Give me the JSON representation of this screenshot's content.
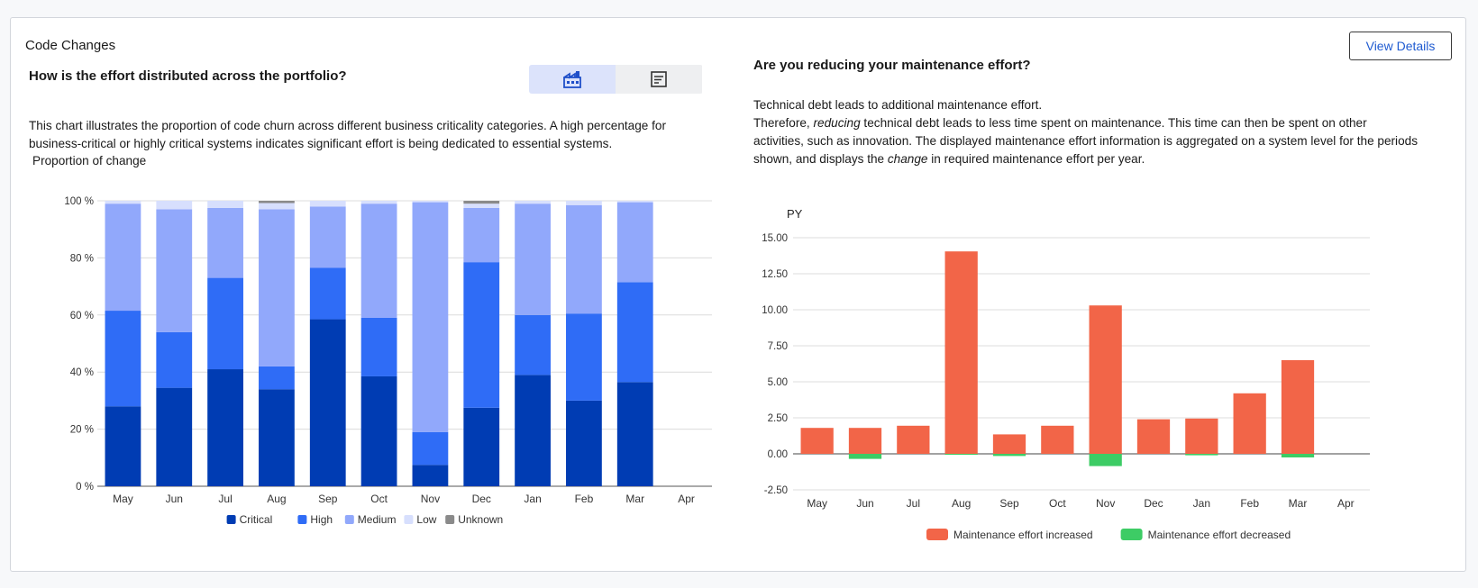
{
  "card": {
    "title": "Code Changes",
    "view_details_label": "View Details"
  },
  "left": {
    "title": "How is the effort distributed across the portfolio?",
    "toggle": [
      {
        "icon": "factory-icon",
        "active": true
      },
      {
        "icon": "report-icon",
        "active": false
      }
    ],
    "description": "This chart illustrates the proportion of code churn across different business criticality categories. A high percentage for business-critical or highly critical systems indicates significant effort is being dedicated to essential systems.",
    "y_axis_title": "Proportion of change"
  },
  "right": {
    "title": "Are you reducing your maintenance effort?",
    "desc_line1": "Technical debt leads to additional maintenance effort.",
    "desc_p2_a": "Therefore, ",
    "desc_p2_em1": "reducing",
    "desc_p2_b": " technical debt leads to less time spent on maintenance. This time can then be spent on other activities, such as innovation. The displayed maintenance effort information is aggregated on a system level for the periods shown, and displays the ",
    "desc_p2_em2": "change",
    "desc_p2_c": " in required maintenance effort per year."
  },
  "chart_data": [
    {
      "type": "bar",
      "stacked": true,
      "categories": [
        "May",
        "Jun",
        "Jul",
        "Aug",
        "Sep",
        "Oct",
        "Nov",
        "Dec",
        "Jan",
        "Feb",
        "Mar",
        "Apr"
      ],
      "series": [
        {
          "name": "Critical",
          "color": "#003cb3",
          "values": [
            28,
            34.5,
            41,
            34,
            58.5,
            38.5,
            7.5,
            27.5,
            39,
            30,
            36.5,
            null
          ]
        },
        {
          "name": "High",
          "color": "#2f6cf6",
          "values": [
            33.5,
            19.5,
            32,
            8,
            18,
            20.5,
            11.5,
            51,
            21,
            30.5,
            35,
            null
          ]
        },
        {
          "name": "Medium",
          "color": "#91a8fb",
          "values": [
            37.5,
            43,
            24.5,
            55,
            21.5,
            40,
            80.5,
            19,
            39,
            38,
            28,
            null
          ]
        },
        {
          "name": "Low",
          "color": "#d7dffd",
          "values": [
            1,
            3,
            2.5,
            2.2,
            2,
            1,
            0.5,
            1.5,
            1,
            1.5,
            0.5,
            null
          ]
        },
        {
          "name": "Unknown",
          "color": "#8a8a8a",
          "values": [
            0,
            0,
            0,
            0.8,
            0,
            0,
            0,
            1,
            0,
            0,
            0,
            null
          ]
        }
      ],
      "ylim": [
        0,
        100
      ],
      "yticks": [
        0,
        20,
        40,
        60,
        80,
        100
      ],
      "ytick_suffix": " %",
      "ylabel": "Proportion of change",
      "grid": true,
      "legend": "bottom"
    },
    {
      "type": "bar",
      "categories": [
        "May",
        "Jun",
        "Jul",
        "Aug",
        "Sep",
        "Oct",
        "Nov",
        "Dec",
        "Jan",
        "Feb",
        "Mar",
        "Apr"
      ],
      "series": [
        {
          "name": "Maintenance effort increased",
          "color": "#f26548",
          "values": [
            1.8,
            1.8,
            1.95,
            14.05,
            1.35,
            1.95,
            10.3,
            2.4,
            2.45,
            4.2,
            6.5,
            null
          ]
        },
        {
          "name": "Maintenance effort decreased",
          "color": "#3dcc65",
          "values": [
            0,
            -0.35,
            0,
            -0.05,
            -0.15,
            0,
            -0.85,
            0,
            -0.1,
            0,
            -0.25,
            null
          ]
        }
      ],
      "ylim": [
        -2.5,
        15
      ],
      "yticks": [
        -2.5,
        0,
        2.5,
        5,
        7.5,
        10,
        12.5,
        15
      ],
      "ylabel": "PY",
      "grid": true,
      "legend": "bottom"
    }
  ]
}
